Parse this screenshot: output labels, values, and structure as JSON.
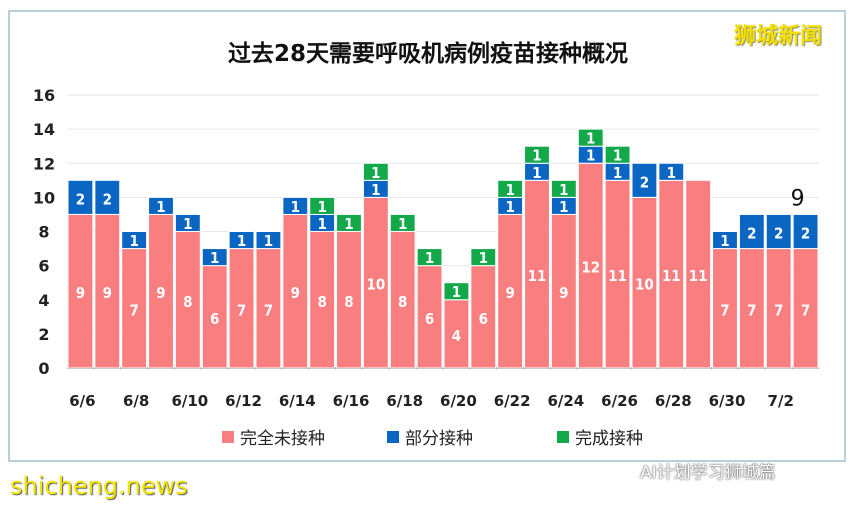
{
  "title": "过去28天需要呼吸机病例疫苗接种概况",
  "logo": "狮城新闻",
  "watermark": "shicheng.news",
  "wechat_account": "AI计划学习狮城篇",
  "chart_data": {
    "type": "bar",
    "stacked": true,
    "title": "过去28天需要呼吸机病例疫苗接种概况",
    "categories": [
      "6/6",
      "6/7",
      "6/8",
      "6/9",
      "6/10",
      "6/11",
      "6/12",
      "6/13",
      "6/14",
      "6/15",
      "6/16",
      "6/17",
      "6/18",
      "6/19",
      "6/20",
      "6/21",
      "6/22",
      "6/23",
      "6/24",
      "6/25",
      "6/26",
      "6/27",
      "6/28",
      "6/29",
      "6/30",
      "7/1",
      "7/2",
      "7/3"
    ],
    "tick_labels": [
      "6/6",
      "6/8",
      "6/10",
      "6/12",
      "6/14",
      "6/16",
      "6/18",
      "6/20",
      "6/22",
      "6/24",
      "6/26",
      "6/28",
      "6/30",
      "7/2"
    ],
    "series": [
      {
        "name": "完全未接种",
        "color": "#f87e80",
        "values": [
          9,
          9,
          7,
          9,
          8,
          6,
          7,
          7,
          9,
          8,
          8,
          10,
          8,
          6,
          4,
          6,
          9,
          11,
          9,
          12,
          11,
          10,
          11,
          11,
          7,
          7,
          7,
          7
        ]
      },
      {
        "name": "部分接种",
        "color": "#0a66c2",
        "values": [
          2,
          2,
          1,
          1,
          1,
          1,
          1,
          1,
          1,
          1,
          0,
          1,
          0,
          0,
          0,
          0,
          1,
          1,
          1,
          1,
          1,
          2,
          1,
          0,
          1,
          2,
          2,
          2
        ]
      },
      {
        "name": "完成接种",
        "color": "#13a84a",
        "values": [
          0,
          0,
          0,
          0,
          0,
          0,
          0,
          0,
          0,
          1,
          1,
          1,
          1,
          1,
          1,
          1,
          1,
          1,
          1,
          1,
          1,
          0,
          0,
          0,
          0,
          0,
          0,
          0
        ]
      }
    ],
    "annotation": {
      "category": "7/3",
      "text": "9"
    },
    "ylim": [
      0,
      16
    ],
    "yticks": [
      0,
      2,
      4,
      6,
      8,
      10,
      12,
      14,
      16
    ],
    "grid": true,
    "legend": "bottom"
  }
}
